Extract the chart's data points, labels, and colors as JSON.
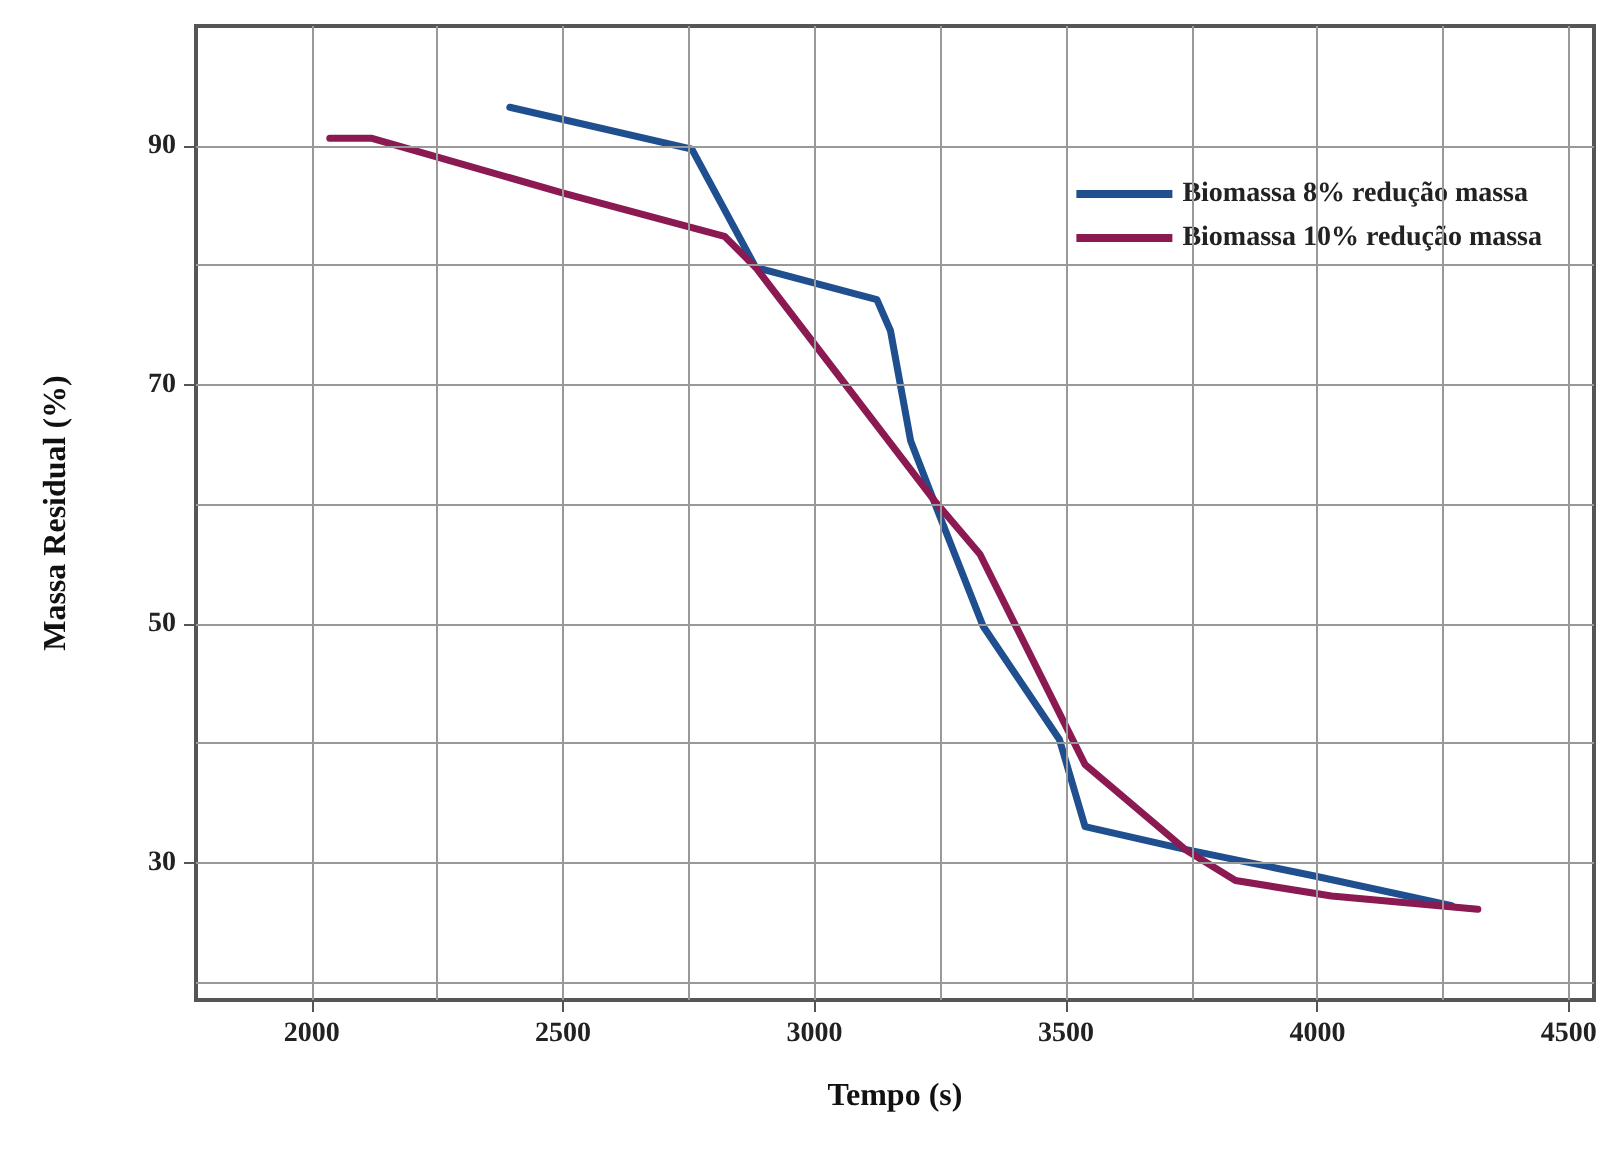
{
  "chart_data": {
    "type": "line",
    "xlabel": "Tempo (s)",
    "ylabel": "Massa Residual (%)",
    "xlim": [
      1770,
      4550
    ],
    "xticks": [
      2000,
      {
        "value": 2250,
        "label": null
      },
      2500,
      {
        "value": 2750,
        "label": null
      },
      3000,
      {
        "value": 3250,
        "label": null
      },
      3500,
      {
        "value": 3750,
        "label": null
      },
      4000,
      {
        "value": 4250,
        "label": null
      },
      4500
    ],
    "ylim": [
      18.5,
      100
    ],
    "yticks": [
      {
        "value": 20,
        "label": null
      },
      30,
      {
        "value": 40,
        "label": null
      },
      50,
      {
        "value": 60,
        "label": null
      },
      70,
      {
        "value": 80,
        "label": null
      },
      90
    ],
    "grid": true,
    "legend": "top right",
    "marker": "none",
    "line_style": "solid",
    "series": [
      {
        "name": "Biomassa 8% redução massa",
        "color": "#1f4f8f",
        "x": [
          2394,
          2756,
          2883,
          3124,
          3151,
          3191,
          3247,
          3335,
          3487,
          3538,
          3737,
          3992,
          4267
        ],
        "values": [
          93.2,
          89.7,
          79.8,
          77.1,
          74.5,
          65.3,
          59.2,
          49.8,
          40.3,
          33.0,
          31.1,
          28.9,
          26.4
        ]
      },
      {
        "name": "Biomassa 10% redução massa",
        "color": "#8b1a52",
        "x": [
          2036,
          2120,
          2502,
          2821,
          2883,
          3238,
          3329,
          3538,
          3737,
          3837,
          4028,
          4319
        ],
        "values": [
          90.6,
          90.6,
          86.0,
          82.4,
          79.8,
          60.3,
          55.8,
          38.2,
          31.1,
          28.5,
          27.2,
          26.1
        ]
      }
    ]
  }
}
